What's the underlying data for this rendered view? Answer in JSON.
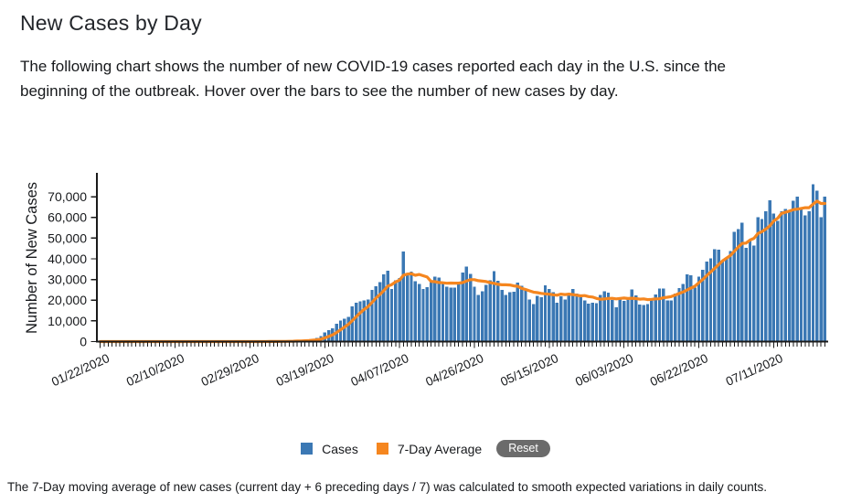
{
  "page": {
    "title": "New Cases by Day",
    "description_lines": [
      "The following chart shows the number of new COVID-19 cases reported each day in the U.S. since the",
      "beginning of the outbreak. Hover over the bars to see the number of new cases by day."
    ],
    "footnote": "The 7-Day moving average of new cases (current day + 6 preceding days / 7) was calculated to smooth expected variations in daily counts."
  },
  "legend": {
    "cases_label": "Cases",
    "avg_label": "7-Day Average",
    "reset_label": "Reset"
  },
  "chart_data": {
    "type": "bar",
    "title": "New Cases by Day",
    "xlabel": "",
    "ylabel": "Number of New Cases",
    "ylim": [
      0,
      80000
    ],
    "grid": false,
    "legend_position": "bottom",
    "bar_color": "#3b78b4",
    "line_color": "#f5861f",
    "axis_color": "#1a1a1a",
    "y_tick_labels": [
      "0",
      "10,000",
      "20,000",
      "30,000",
      "40,000",
      "50,000",
      "60,000",
      "70,000"
    ],
    "y_tick_values": [
      0,
      10000,
      20000,
      30000,
      40000,
      50000,
      60000,
      70000
    ],
    "x_start_date": "01/22/2020",
    "x_end_date": "07/24/2020",
    "x_tick_interval_days": 19,
    "x_tick_labels": [
      "01/22/2020",
      "02/10/2020",
      "02/29/2020",
      "03/19/2020",
      "04/07/2020",
      "04/26/2020",
      "05/15/2020",
      "06/03/2020",
      "06/22/2020",
      "07/11/2020"
    ],
    "series": [
      {
        "name": "Cases",
        "type": "bar",
        "color": "#3b78b4",
        "values": [
          1,
          1,
          2,
          0,
          3,
          0,
          0,
          0,
          2,
          3,
          1,
          0,
          2,
          0,
          1,
          0,
          0,
          1,
          0,
          0,
          1,
          2,
          1,
          2,
          0,
          0,
          1,
          1,
          0,
          1,
          2,
          1,
          3,
          4,
          5,
          6,
          8,
          10,
          12,
          18,
          22,
          26,
          34,
          60,
          98,
          120,
          184,
          228,
          291,
          361,
          457,
          593,
          720,
          838,
          1234,
          1789,
          2566,
          4480,
          5594,
          6365,
          8540,
          10189,
          11075,
          12038,
          17102,
          18691,
          19452,
          19913,
          20353,
          24998,
          26641,
          28819,
          32425,
          34257,
          25316,
          29561,
          30613,
          43500,
          32500,
          33752,
          29145,
          27917,
          25306,
          26389,
          28680,
          31451,
          30922,
          28116,
          26512,
          25995,
          25985,
          28628,
          33300,
          36188,
          32791,
          26509,
          22541,
          24385,
          27327,
          29517,
          33955,
          29288,
          24972,
          22593,
          23841,
          24128,
          28420,
          26906,
          25612,
          20329,
          18117,
          22048,
          21467,
          27143,
          25508,
          23792,
          18873,
          21841,
          20254,
          23285,
          25434,
          23290,
          21614,
          19790,
          18439,
          18881,
          18611,
          22577,
          24266,
          23553,
          20007,
          16571,
          20461,
          19699,
          21140,
          25291,
          22303,
          17919,
          17598,
          18082,
          20486,
          22800,
          25640,
          25540,
          19920,
          19819,
          23297,
          25752,
          27762,
          32411,
          32074,
          26067,
          31402,
          34720,
          38672,
          40184,
          44703,
          44458,
          38800,
          40588,
          43644,
          52982,
          54357,
          57497,
          45255,
          49199,
          46329,
          60021,
          59260,
          63004,
          68241,
          61779,
          58349,
          62918,
          64000,
          63000,
          68000,
          70000,
          64000,
          61000,
          63000,
          76000,
          73000,
          60000,
          70000
        ]
      },
      {
        "name": "7-Day Average",
        "type": "line",
        "color": "#f5861f",
        "derived_from": "Cases",
        "rule": "average of current day + 6 preceding days"
      }
    ]
  }
}
